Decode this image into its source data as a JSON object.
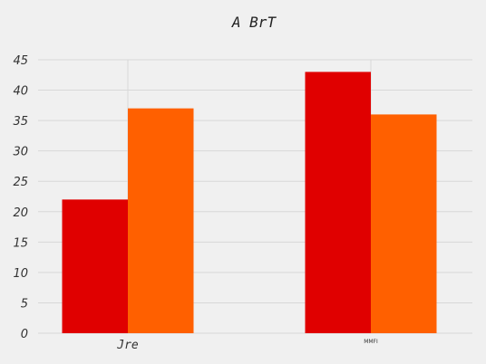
{
  "chart_data": {
    "type": "bar",
    "title": "A BrT",
    "xlabel": "",
    "ylabel": "",
    "categories": [
      "Jre",
      "MMFI"
    ],
    "series": [
      {
        "values": [
          22,
          43
        ],
        "color": "#e00000"
      },
      {
        "values": [
          37,
          36
        ],
        "color": "#ff6000"
      }
    ],
    "ylim": [
      0,
      45
    ],
    "yticks": [
      0,
      5,
      10,
      15,
      20,
      25,
      30,
      35,
      40,
      45
    ],
    "grid": true,
    "background": "#f0f0f0",
    "grid_color": "#d8d8d8"
  }
}
